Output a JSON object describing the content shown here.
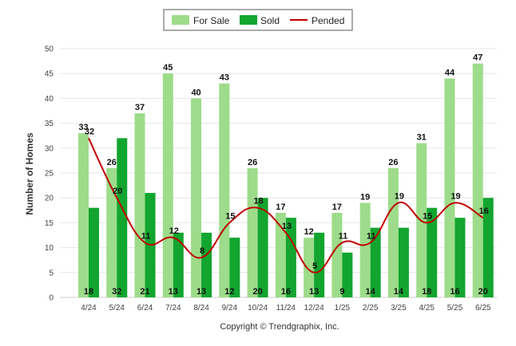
{
  "chart_data": {
    "type": "bar",
    "categories": [
      "4/24",
      "5/24",
      "6/24",
      "7/24",
      "8/24",
      "9/24",
      "10/24",
      "11/24",
      "12/24",
      "1/25",
      "2/25",
      "3/25",
      "4/25",
      "5/25",
      "6/25"
    ],
    "series": [
      {
        "name": "For Sale",
        "type": "bar",
        "color": "#9ddc8a",
        "values": [
          33,
          26,
          37,
          45,
          40,
          43,
          26,
          17,
          12,
          17,
          19,
          26,
          31,
          44,
          47
        ]
      },
      {
        "name": "Sold",
        "type": "bar",
        "color": "#12a52f",
        "values": [
          18,
          32,
          21,
          13,
          13,
          12,
          20,
          16,
          13,
          9,
          14,
          14,
          18,
          16,
          20
        ]
      },
      {
        "name": "Pended",
        "type": "line",
        "color": "#c00000",
        "values": [
          32,
          20,
          11,
          12,
          8,
          15,
          18,
          13,
          5,
          11,
          11,
          19,
          15,
          19,
          16
        ]
      }
    ],
    "ylabel": "Number of Homes",
    "ylim": [
      0,
      50
    ],
    "yticks": [
      "0",
      "5",
      "10",
      "15",
      "20",
      "25",
      "30",
      "35",
      "40",
      "45",
      "50"
    ],
    "grid": true,
    "legend_position": "top-center"
  },
  "footer": {
    "copyright": "Copyright © Trendgraphix, Inc."
  }
}
